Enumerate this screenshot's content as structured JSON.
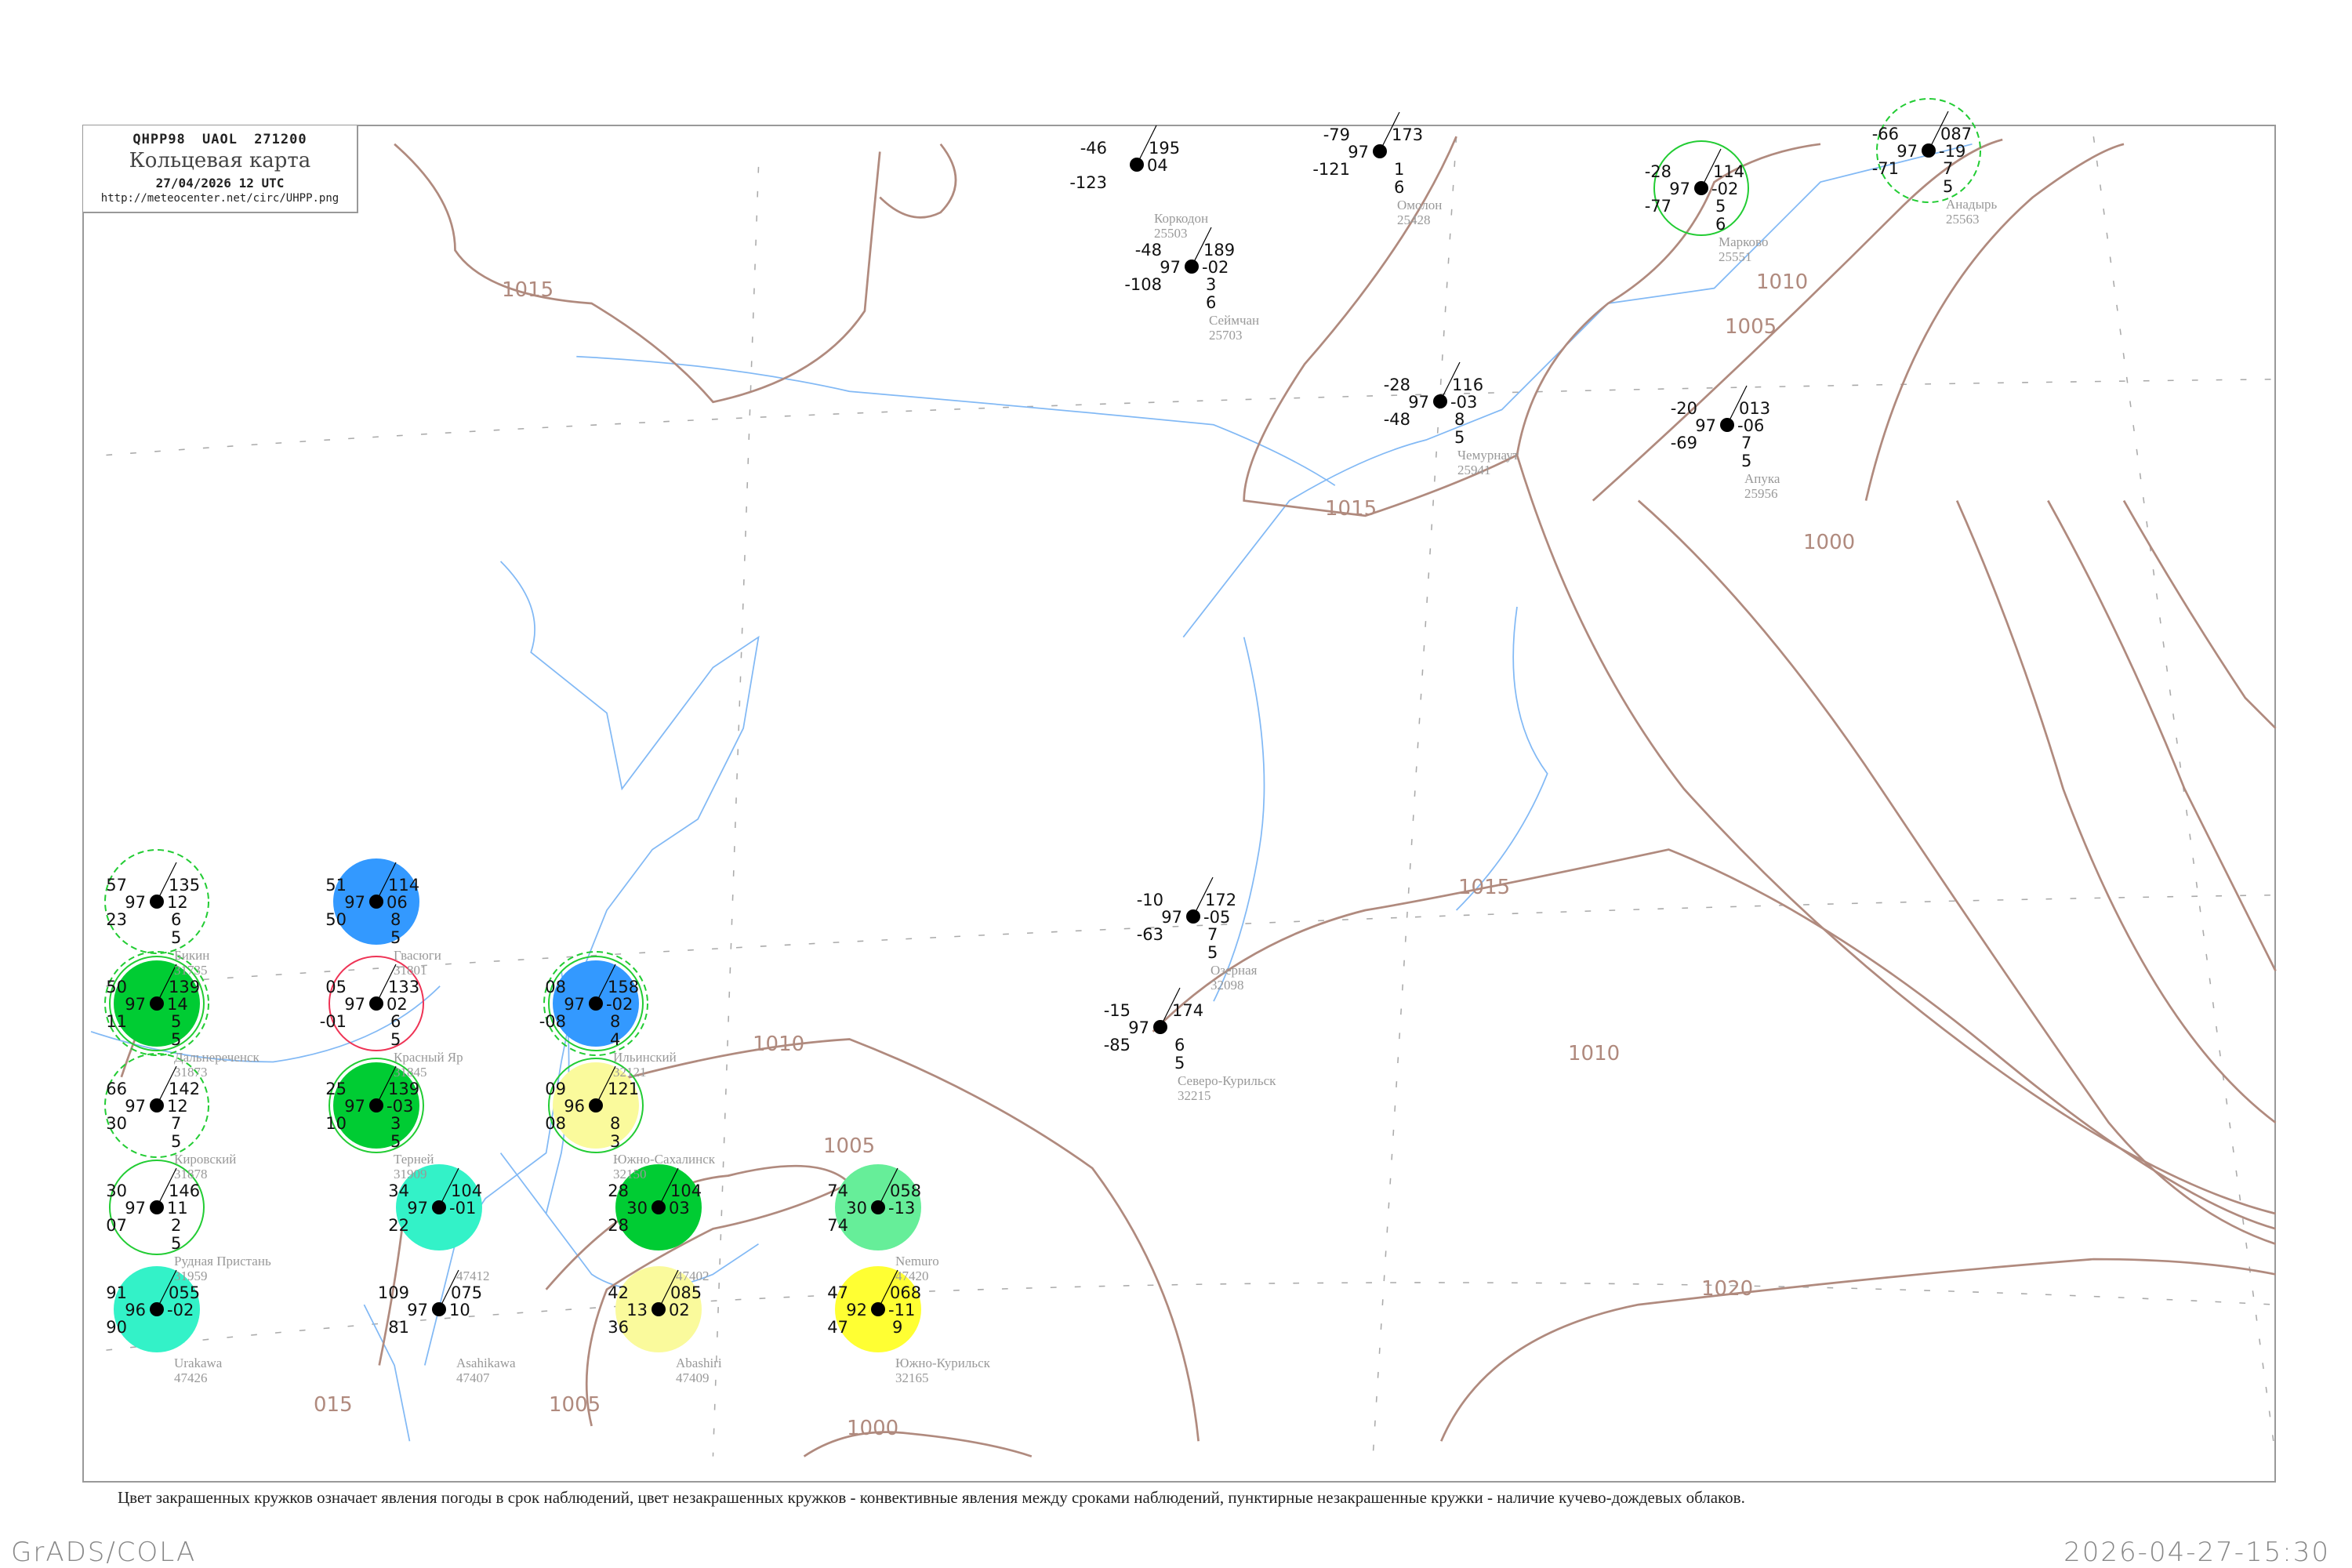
{
  "header": {
    "bulletin_code": "QHPP98  UAOL  271200",
    "title": "Кольцевая карта",
    "datetime": "27/04/2026 12 UTC",
    "url": "http://meteocenter.net/circ/UHPP.png"
  },
  "caption": "Цвет закрашенных кружков означает явления погоды в срок наблюдений, цвет незакрашенных кружков - конвективные явления между сроками наблюдений, пунктирные незакрашенные кружки - наличие кучево-дождевых облаков.",
  "footer": {
    "left": "GrADS/COLA",
    "right": "2026-04-27-15:30"
  },
  "colors": {
    "isobar": "#b08a7e",
    "coastline": "#82b9f5",
    "grid": "#aaaaaa",
    "cb_ring": "#22cc33",
    "red_ring": "#ee3355"
  },
  "isobars": {
    "labels": [
      "1015",
      "1010",
      "1005",
      "1000",
      "1015",
      "1015",
      "1010",
      "1005",
      "1005",
      "1000",
      "1020",
      "015",
      "1010"
    ]
  },
  "stations": [
    {
      "id": "25563",
      "name": "Анадырь",
      "t": "-66",
      "vv": "97",
      "td": "-71",
      "p": "087",
      "tend": "-19",
      "n1": "7",
      "n2": "5",
      "fill": null,
      "ring": "dashed"
    },
    {
      "id": "25551",
      "name": "Марково",
      "t": "-28",
      "vv": "97",
      "td": "-77",
      "p": "114",
      "tend": "-02",
      "n1": "5",
      "n2": "6",
      "fill": null,
      "ring": "solid"
    },
    {
      "id": "25956",
      "name": "Апука",
      "t": "-20",
      "vv": "97",
      "td": "-69",
      "p": "013",
      "tend": "-06",
      "n1": "7",
      "n2": "5",
      "fill": null,
      "ring": null
    },
    {
      "id": "25428",
      "name": "Омолон",
      "t": "-79",
      "vv": "97",
      "td": "-121",
      "p": "173",
      "tend": "",
      "n1": "1",
      "n2": "6",
      "fill": null,
      "ring": null
    },
    {
      "id": "25503",
      "name": "Коркодон",
      "t": "-46",
      "vv": "",
      "td": "-123",
      "p": "195",
      "tend": "04",
      "n1": "",
      "n2": "",
      "fill": null,
      "ring": null
    },
    {
      "id": "25703",
      "name": "Сеймчан",
      "t": "-48",
      "vv": "97",
      "td": "-108",
      "p": "189",
      "tend": "-02",
      "n1": "3",
      "n2": "6",
      "fill": null,
      "ring": null
    },
    {
      "id": "25941",
      "name": "Чемурнаут",
      "t": "-28",
      "vv": "97",
      "td": "-48",
      "p": "116",
      "tend": "-03",
      "n1": "8",
      "n2": "5",
      "fill": null,
      "ring": null
    },
    {
      "id": "32098",
      "name": "Озерная",
      "t": "-10",
      "vv": "97",
      "td": "-63",
      "p": "172",
      "tend": "-05",
      "n1": "7",
      "n2": "5",
      "fill": null,
      "ring": null
    },
    {
      "id": "32215",
      "name": "Северо-Курильск",
      "t": "-15",
      "vv": "97",
      "td": "-85",
      "p": "174",
      "tend": "",
      "n1": "6",
      "n2": "5",
      "fill": null,
      "ring": null
    },
    {
      "id": "32121",
      "name": "Ильинский",
      "t": "08",
      "vv": "97",
      "td": "-08",
      "p": "158",
      "tend": "-02",
      "n1": "8",
      "n2": "4",
      "fill": "#3399ff",
      "ring": "double"
    },
    {
      "id": "32150",
      "name": "Южно-Сахалинск",
      "t": "09",
      "vv": "96",
      "td": "08",
      "p": "121",
      "tend": "",
      "n1": "8",
      "n2": "3",
      "fill": "#fafa9c",
      "ring": "solid"
    },
    {
      "id": "31801",
      "name": "Гвасюги",
      "t": "51",
      "vv": "97",
      "td": "50",
      "p": "114",
      "tend": "06",
      "n1": "8",
      "n2": "5",
      "fill": "#3399ff",
      "ring": null
    },
    {
      "id": "31873",
      "name": "Дальнереченск",
      "t": "50",
      "vv": "97",
      "td": "11",
      "p": "139",
      "tend": "14",
      "n1": "5",
      "n2": "5",
      "fill": "#00cc33",
      "ring": "double"
    },
    {
      "id": "31878",
      "name": "Кировский",
      "t": "66",
      "vv": "97",
      "td": "30",
      "p": "142",
      "tend": "12",
      "n1": "7",
      "n2": "5",
      "fill": null,
      "ring": "dashed"
    },
    {
      "id": "31735",
      "name": "Бикин",
      "t": "57",
      "vv": "97",
      "td": "23",
      "p": "135",
      "tend": "12",
      "n1": "6",
      "n2": "5",
      "fill": null,
      "ring": "dashed"
    },
    {
      "id": "31845",
      "name": "Красный Яр",
      "t": "05",
      "vv": "97",
      "td": "-01",
      "p": "133",
      "tend": "02",
      "n1": "6",
      "n2": "5",
      "fill": null,
      "ring": "red"
    },
    {
      "id": "31909",
      "name": "Терней",
      "t": "25",
      "vv": "97",
      "td": "10",
      "p": "139",
      "tend": "-03",
      "n1": "3",
      "n2": "5",
      "fill": "#00cc33",
      "ring": "solid"
    },
    {
      "id": "31959",
      "name": "Рудная Пристань",
      "t": "30",
      "vv": "97",
      "td": "07",
      "p": "146",
      "tend": "11",
      "n1": "2",
      "n2": "5",
      "fill": null,
      "ring": "solid"
    },
    {
      "id": "47412",
      "name": "",
      "t": "34",
      "vv": "97",
      "td": "22",
      "p": "104",
      "tend": "-01",
      "n1": "",
      "n2": "",
      "fill": "#33f2c8",
      "ring": null
    },
    {
      "id": "47402",
      "name": "",
      "t": "28",
      "vv": "30",
      "td": "28",
      "p": "104",
      "tend": "03",
      "n1": "",
      "n2": "",
      "fill": "#00cc33",
      "ring": null
    },
    {
      "id": "47407",
      "name": "Asahikawa",
      "t": "109",
      "vv": "97",
      "td": "81",
      "p": "075",
      "tend": "10",
      "n1": "",
      "n2": "",
      "fill": null,
      "ring": null
    },
    {
      "id": "47409",
      "name": "Abashiri",
      "t": "42",
      "vv": "13",
      "td": "36",
      "p": "085",
      "tend": "02",
      "n1": "",
      "n2": "",
      "fill": "#fafa9c",
      "ring": null
    },
    {
      "id": "32165",
      "name": "Южно-Курильск",
      "t": "47",
      "vv": "92",
      "td": "47",
      "p": "068",
      "tend": "-11",
      "n1": "9",
      "n2": "",
      "fill": "#ffff33",
      "ring": null
    },
    {
      "id": "47420",
      "name": "Nemuro",
      "t": "74",
      "vv": "30",
      "td": "74",
      "p": "058",
      "tend": "-13",
      "n1": "",
      "n2": "",
      "fill": "#66ee99",
      "ring": null
    },
    {
      "id": "47426",
      "name": "Urakawa",
      "t": "91",
      "vv": "96",
      "td": "90",
      "p": "055",
      "tend": "-02",
      "n1": "",
      "n2": "",
      "fill": "#33f2c8",
      "ring": null
    }
  ]
}
